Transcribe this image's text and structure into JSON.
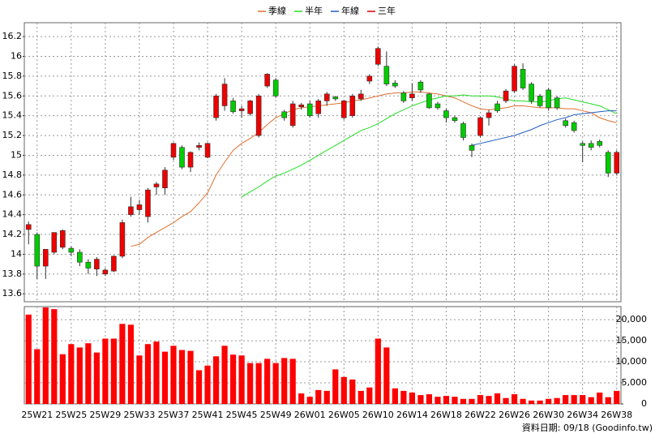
{
  "chart_data": [
    {
      "type": "candlestick",
      "categories": [
        null,
        "25W21",
        null,
        null,
        null,
        "25W25",
        null,
        null,
        null,
        "25W29",
        null,
        null,
        null,
        "25W33",
        null,
        null,
        null,
        "25W37",
        null,
        null,
        null,
        "25W41",
        null,
        null,
        null,
        "25W45",
        null,
        null,
        null,
        "25W49",
        null,
        null,
        null,
        "26W01",
        null,
        null,
        null,
        "26W05",
        null,
        null,
        null,
        "26W10",
        null,
        null,
        null,
        "26W14",
        null,
        null,
        null,
        "26W18",
        null,
        null,
        null,
        "26W22",
        null,
        null,
        null,
        "26W26",
        null,
        null,
        null,
        "26W30",
        null,
        null,
        null,
        "26W34",
        null,
        null,
        null,
        "26W38"
      ],
      "open": [
        14.25,
        14.2,
        13.88,
        14.02,
        14.07,
        14.06,
        14.02,
        13.92,
        13.85,
        13.8,
        13.83,
        13.98,
        14.4,
        14.45,
        14.38,
        14.68,
        14.67,
        14.98,
        15.08,
        14.88,
        15.08,
        14.98,
        15.38,
        15.5,
        15.55,
        15.45,
        15.42,
        15.2,
        15.7,
        15.76,
        15.44,
        15.3,
        15.49,
        15.52,
        15.42,
        15.55,
        15.59,
        15.38,
        15.4,
        15.57,
        15.75,
        15.92,
        15.9,
        15.73,
        15.63,
        15.58,
        15.74,
        15.62,
        15.52,
        15.45,
        15.38,
        15.32,
        15.1,
        15.2,
        15.38,
        15.52,
        15.55,
        15.65,
        15.87,
        15.72,
        15.6,
        15.66,
        15.58,
        15.35,
        15.33,
        15.12,
        15.12,
        15.14,
        15.03,
        14.82
      ],
      "high": [
        14.33,
        14.22,
        14.05,
        14.22,
        14.25,
        14.08,
        14.05,
        13.95,
        13.97,
        13.86,
        13.99,
        14.35,
        14.58,
        14.55,
        14.67,
        14.73,
        14.88,
        15.13,
        15.1,
        15.04,
        15.13,
        15.13,
        15.62,
        15.78,
        15.58,
        15.5,
        15.56,
        15.62,
        15.83,
        15.78,
        15.46,
        15.55,
        15.53,
        15.55,
        15.57,
        15.64,
        15.6,
        15.56,
        15.62,
        15.66,
        15.82,
        16.1,
        16.05,
        15.76,
        15.65,
        15.73,
        15.76,
        15.63,
        15.54,
        15.47,
        15.4,
        15.34,
        15.12,
        15.39,
        15.46,
        15.55,
        15.67,
        15.92,
        15.93,
        15.74,
        15.62,
        15.68,
        15.6,
        15.37,
        15.35,
        15.14,
        15.15,
        15.16,
        15.05,
        15.05
      ],
      "low": [
        14.1,
        13.75,
        13.75,
        14.0,
        14.05,
        13.98,
        13.88,
        13.8,
        13.78,
        13.78,
        13.82,
        13.96,
        14.38,
        14.4,
        14.32,
        14.6,
        14.6,
        14.95,
        14.86,
        14.83,
        15.05,
        14.97,
        15.35,
        15.45,
        15.42,
        15.38,
        15.4,
        15.18,
        15.68,
        15.58,
        15.35,
        15.28,
        15.46,
        15.38,
        15.38,
        15.5,
        15.55,
        15.36,
        15.38,
        15.55,
        15.72,
        15.9,
        15.7,
        15.68,
        15.53,
        15.55,
        15.63,
        15.47,
        15.46,
        15.33,
        15.33,
        15.15,
        14.98,
        15.18,
        15.3,
        15.43,
        15.53,
        15.63,
        15.66,
        15.52,
        15.48,
        15.45,
        15.46,
        15.28,
        15.23,
        14.93,
        15.05,
        15.08,
        14.78,
        14.8
      ],
      "close": [
        14.3,
        13.88,
        14.05,
        14.22,
        14.24,
        14.02,
        13.92,
        13.86,
        13.95,
        13.84,
        13.98,
        14.32,
        14.48,
        14.5,
        14.65,
        14.71,
        14.85,
        15.12,
        14.88,
        15.03,
        15.1,
        15.12,
        15.6,
        15.72,
        15.44,
        15.47,
        15.55,
        15.6,
        15.82,
        15.6,
        15.38,
        15.52,
        15.51,
        15.4,
        15.55,
        15.62,
        15.57,
        15.55,
        15.6,
        15.62,
        15.8,
        16.08,
        15.72,
        15.7,
        15.55,
        15.62,
        15.66,
        15.48,
        15.48,
        15.38,
        15.35,
        15.18,
        15.05,
        15.38,
        15.43,
        15.45,
        15.65,
        15.9,
        15.68,
        15.55,
        15.5,
        15.48,
        15.48,
        15.3,
        15.25,
        15.1,
        15.08,
        15.1,
        14.82,
        15.03
      ],
      "up_color": "#ee0000",
      "down_color": "#00cc00",
      "series": [
        {
          "name": "季線",
          "color": "#e07030",
          "values": [
            null,
            null,
            null,
            null,
            null,
            null,
            null,
            null,
            null,
            null,
            null,
            null,
            14.08,
            14.1,
            14.17,
            14.22,
            14.27,
            14.32,
            14.38,
            14.43,
            14.52,
            14.62,
            14.8,
            14.93,
            15.05,
            15.12,
            15.17,
            15.23,
            15.31,
            15.38,
            15.42,
            15.46,
            15.48,
            15.49,
            15.5,
            15.51,
            15.52,
            15.53,
            15.55,
            15.56,
            15.58,
            15.6,
            15.62,
            15.63,
            15.63,
            15.64,
            15.64,
            15.63,
            15.62,
            15.6,
            15.58,
            15.54,
            15.5,
            15.47,
            15.46,
            15.47,
            15.48,
            15.5,
            15.5,
            15.49,
            15.48,
            15.48,
            15.48,
            15.47,
            15.47,
            15.45,
            15.43,
            15.38,
            15.35,
            15.33
          ]
        },
        {
          "name": "半年",
          "color": "#22dd22",
          "values": [
            null,
            null,
            null,
            null,
            null,
            null,
            null,
            null,
            null,
            null,
            null,
            null,
            null,
            null,
            null,
            null,
            null,
            null,
            null,
            null,
            null,
            null,
            null,
            null,
            null,
            14.58,
            14.63,
            14.68,
            14.74,
            14.79,
            14.82,
            14.86,
            14.9,
            14.95,
            15.0,
            15.05,
            15.1,
            15.15,
            15.2,
            15.25,
            15.28,
            15.32,
            15.37,
            15.42,
            15.46,
            15.5,
            15.53,
            15.56,
            15.58,
            15.6,
            15.6,
            15.61,
            15.6,
            15.6,
            15.6,
            15.59,
            15.57,
            15.55,
            15.55,
            15.54,
            15.54,
            15.55,
            15.57,
            15.58,
            15.56,
            15.54,
            15.52,
            15.5,
            15.46,
            15.42
          ]
        },
        {
          "name": "年線",
          "color": "#1f5fbf",
          "values": [
            null,
            null,
            null,
            null,
            null,
            null,
            null,
            null,
            null,
            null,
            null,
            null,
            null,
            null,
            null,
            null,
            null,
            null,
            null,
            null,
            null,
            null,
            null,
            null,
            null,
            null,
            null,
            null,
            null,
            null,
            null,
            null,
            null,
            null,
            null,
            null,
            null,
            null,
            null,
            null,
            null,
            null,
            null,
            null,
            null,
            null,
            null,
            null,
            null,
            null,
            null,
            null,
            15.1,
            15.12,
            15.14,
            15.16,
            15.18,
            15.2,
            15.23,
            15.26,
            15.3,
            15.33,
            15.36,
            15.38,
            15.41,
            15.42,
            15.43,
            15.44,
            15.45,
            15.45
          ]
        },
        {
          "name": "三年",
          "color": "#dd0000",
          "values": [
            null,
            null,
            null,
            null,
            null,
            null,
            null,
            null,
            null,
            null,
            null,
            null,
            null,
            null,
            null,
            null,
            null,
            null,
            null,
            null,
            null,
            null,
            null,
            null,
            null,
            null,
            null,
            null,
            null,
            null,
            null,
            null,
            null,
            null,
            null,
            null,
            null,
            null,
            null,
            null,
            null,
            null,
            null,
            null,
            null,
            null,
            null,
            null,
            null,
            null,
            null,
            null,
            null,
            null,
            null,
            null,
            null,
            null,
            null,
            null,
            null,
            null,
            null,
            null,
            null,
            null,
            null,
            null,
            null,
            null
          ]
        }
      ],
      "ylim": [
        13.52,
        16.34
      ],
      "yticks": [
        13.6,
        13.8,
        14,
        14.2,
        14.4,
        14.6,
        14.8,
        15,
        15.2,
        15.4,
        15.6,
        15.8,
        16,
        16.2
      ],
      "grid": true,
      "legend": "top"
    },
    {
      "type": "bar",
      "color": "#ff0000",
      "values": [
        21200,
        13000,
        22900,
        22500,
        11800,
        14200,
        13400,
        14400,
        12200,
        15500,
        15500,
        19000,
        18800,
        11500,
        14200,
        14800,
        12400,
        13800,
        12800,
        12600,
        8000,
        9100,
        11300,
        13800,
        11700,
        11500,
        9700,
        9700,
        10700,
        9700,
        10900,
        10700,
        2500,
        1700,
        3300,
        3100,
        8200,
        6400,
        5800,
        3100,
        3900,
        15500,
        13400,
        3700,
        3100,
        2700,
        2100,
        2300,
        1700,
        1900,
        1700,
        1200,
        1200,
        2100,
        1900,
        2500,
        1400,
        2300,
        1200,
        800,
        800,
        1200,
        1400,
        2100,
        2100,
        2100,
        1600,
        2700,
        1600,
        3100
      ],
      "ylim": [
        0,
        23100
      ],
      "yticks": [
        0,
        {
          "value": 5000,
          "label": "5,000"
        },
        {
          "value": 10000,
          "label": "10,000"
        },
        {
          "value": 15000,
          "label": "15,000"
        },
        {
          "value": 20000,
          "label": "20,000"
        }
      ],
      "grid": true,
      "source": "資料日期: 09/18 (Goodinfo.tw)"
    }
  ]
}
